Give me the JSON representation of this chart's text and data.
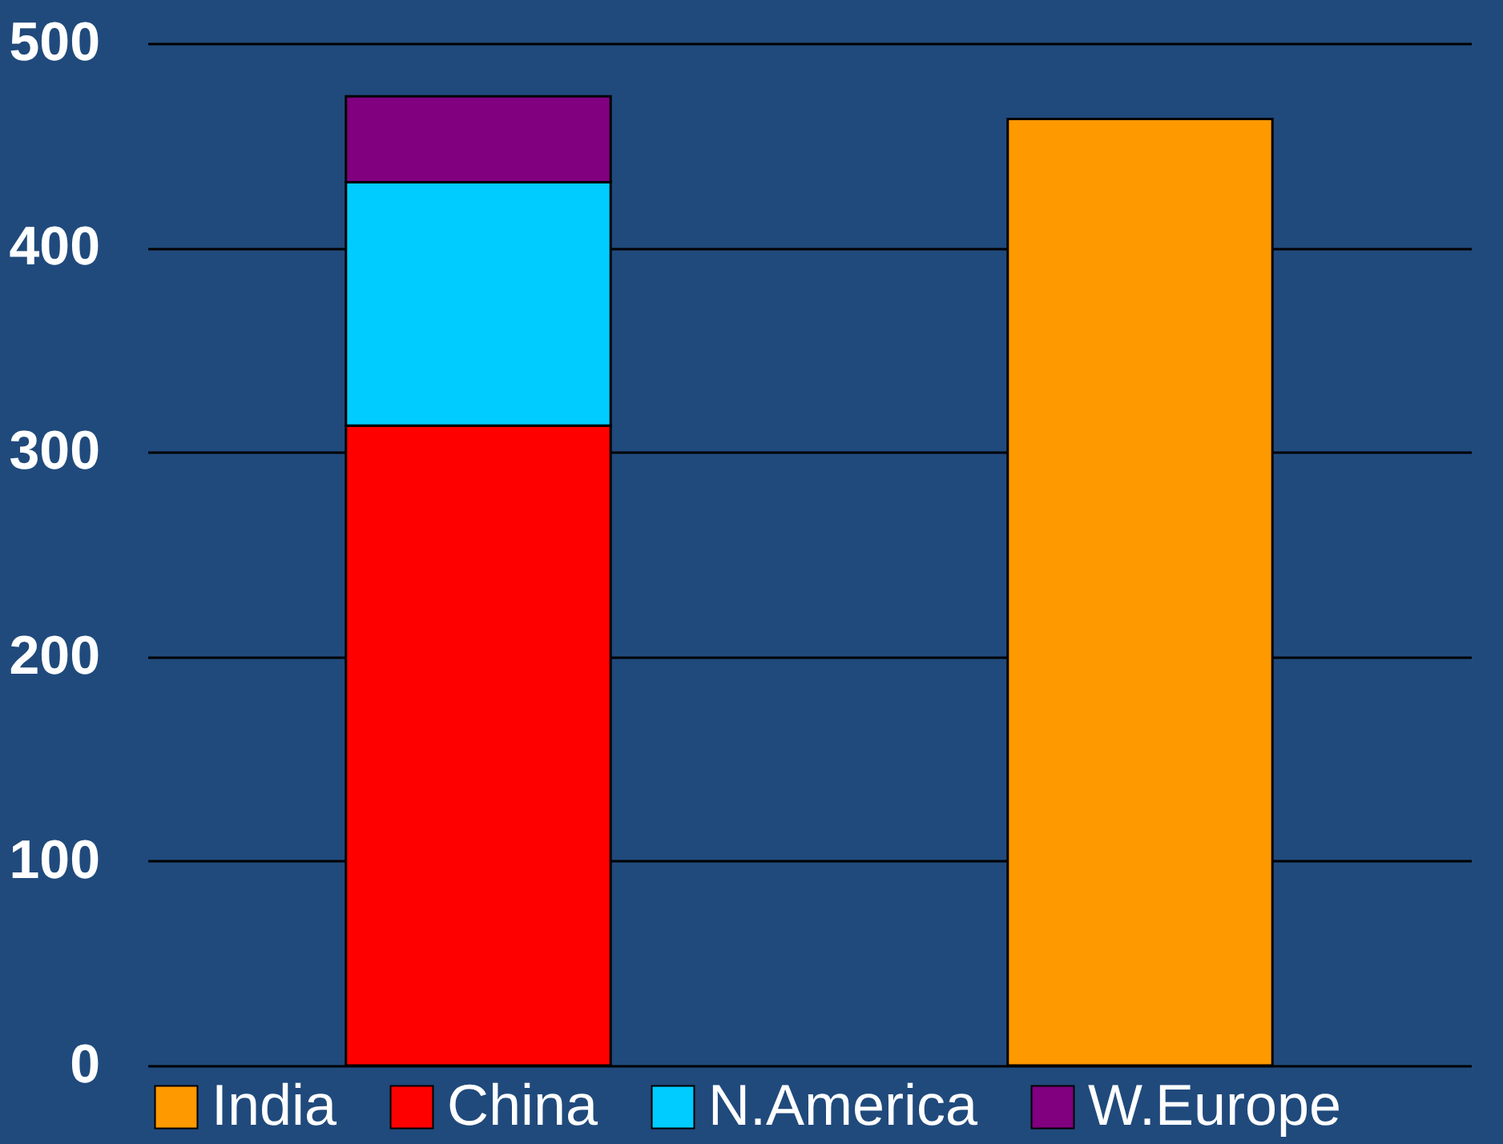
{
  "chart_data": {
    "type": "bar",
    "stacked": true,
    "categories": [
      null,
      null
    ],
    "series": [
      {
        "name": "India",
        "color": "#ff9900",
        "values": [
          null,
          463
        ]
      },
      {
        "name": "China",
        "color": "#ff0000",
        "values": [
          313,
          null
        ]
      },
      {
        "name": "N.America",
        "color": "#00ccff",
        "values": [
          119,
          null
        ]
      },
      {
        "name": "W.Europe",
        "color": "#800080",
        "values": [
          42,
          null
        ]
      }
    ],
    "ylim": [
      0,
      500
    ],
    "yticks": [
      0,
      100,
      200,
      300,
      400,
      500
    ],
    "grid": "y",
    "legend": "bottom",
    "tick_labels": "y"
  }
}
